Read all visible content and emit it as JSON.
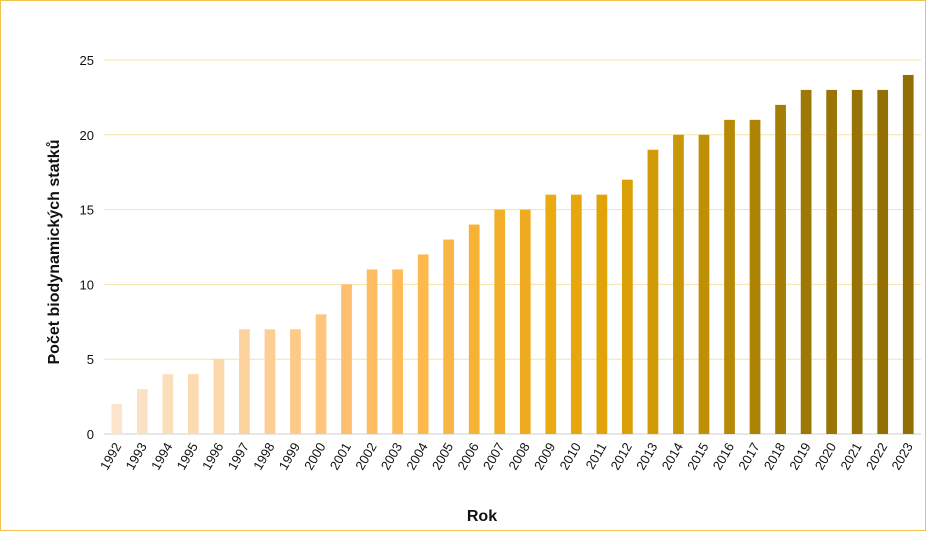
{
  "chart_data": {
    "type": "bar",
    "xlabel": "Rok",
    "ylabel": "Počet biodynamických statků",
    "ylim": [
      0,
      25
    ],
    "yticks": [
      0,
      5,
      10,
      15,
      20,
      25
    ],
    "grid": true,
    "categories": [
      "1992",
      "1993",
      "1994",
      "1995",
      "1996",
      "1997",
      "1998",
      "1999",
      "2000",
      "2001",
      "2002",
      "2003",
      "2004",
      "2005",
      "2006",
      "2007",
      "2008",
      "2009",
      "2010",
      "2011",
      "2012",
      "2013",
      "2014",
      "2015",
      "2016",
      "2017",
      "2018",
      "2019",
      "2020",
      "2021",
      "2022",
      "2023"
    ],
    "values": [
      2,
      3,
      4,
      4,
      5,
      7,
      7,
      7,
      8,
      10,
      11,
      11,
      12,
      13,
      14,
      15,
      15,
      16,
      16,
      16,
      17,
      19,
      20,
      20,
      21,
      21,
      22,
      23,
      23,
      23,
      23,
      24
    ],
    "colors": [
      "#fbe6cc",
      "#fbe2c4",
      "#fbdfbb",
      "#fcdbb2",
      "#fcd7a8",
      "#fcd39e",
      "#fdce93",
      "#fdca88",
      "#fec57d",
      "#fec070",
      "#febd63",
      "#febb58",
      "#feb94d",
      "#fbb542",
      "#f7b236",
      "#f3ae2a",
      "#efab1f",
      "#ebaa12",
      "#e7a70c",
      "#e1a308",
      "#db9f06",
      "#d29a05",
      "#c99604",
      "#c09004",
      "#b68a04",
      "#ad8304",
      "#a57d04",
      "#9e7804",
      "#9a7404",
      "#977204",
      "#947004",
      "#926e04"
    ]
  }
}
